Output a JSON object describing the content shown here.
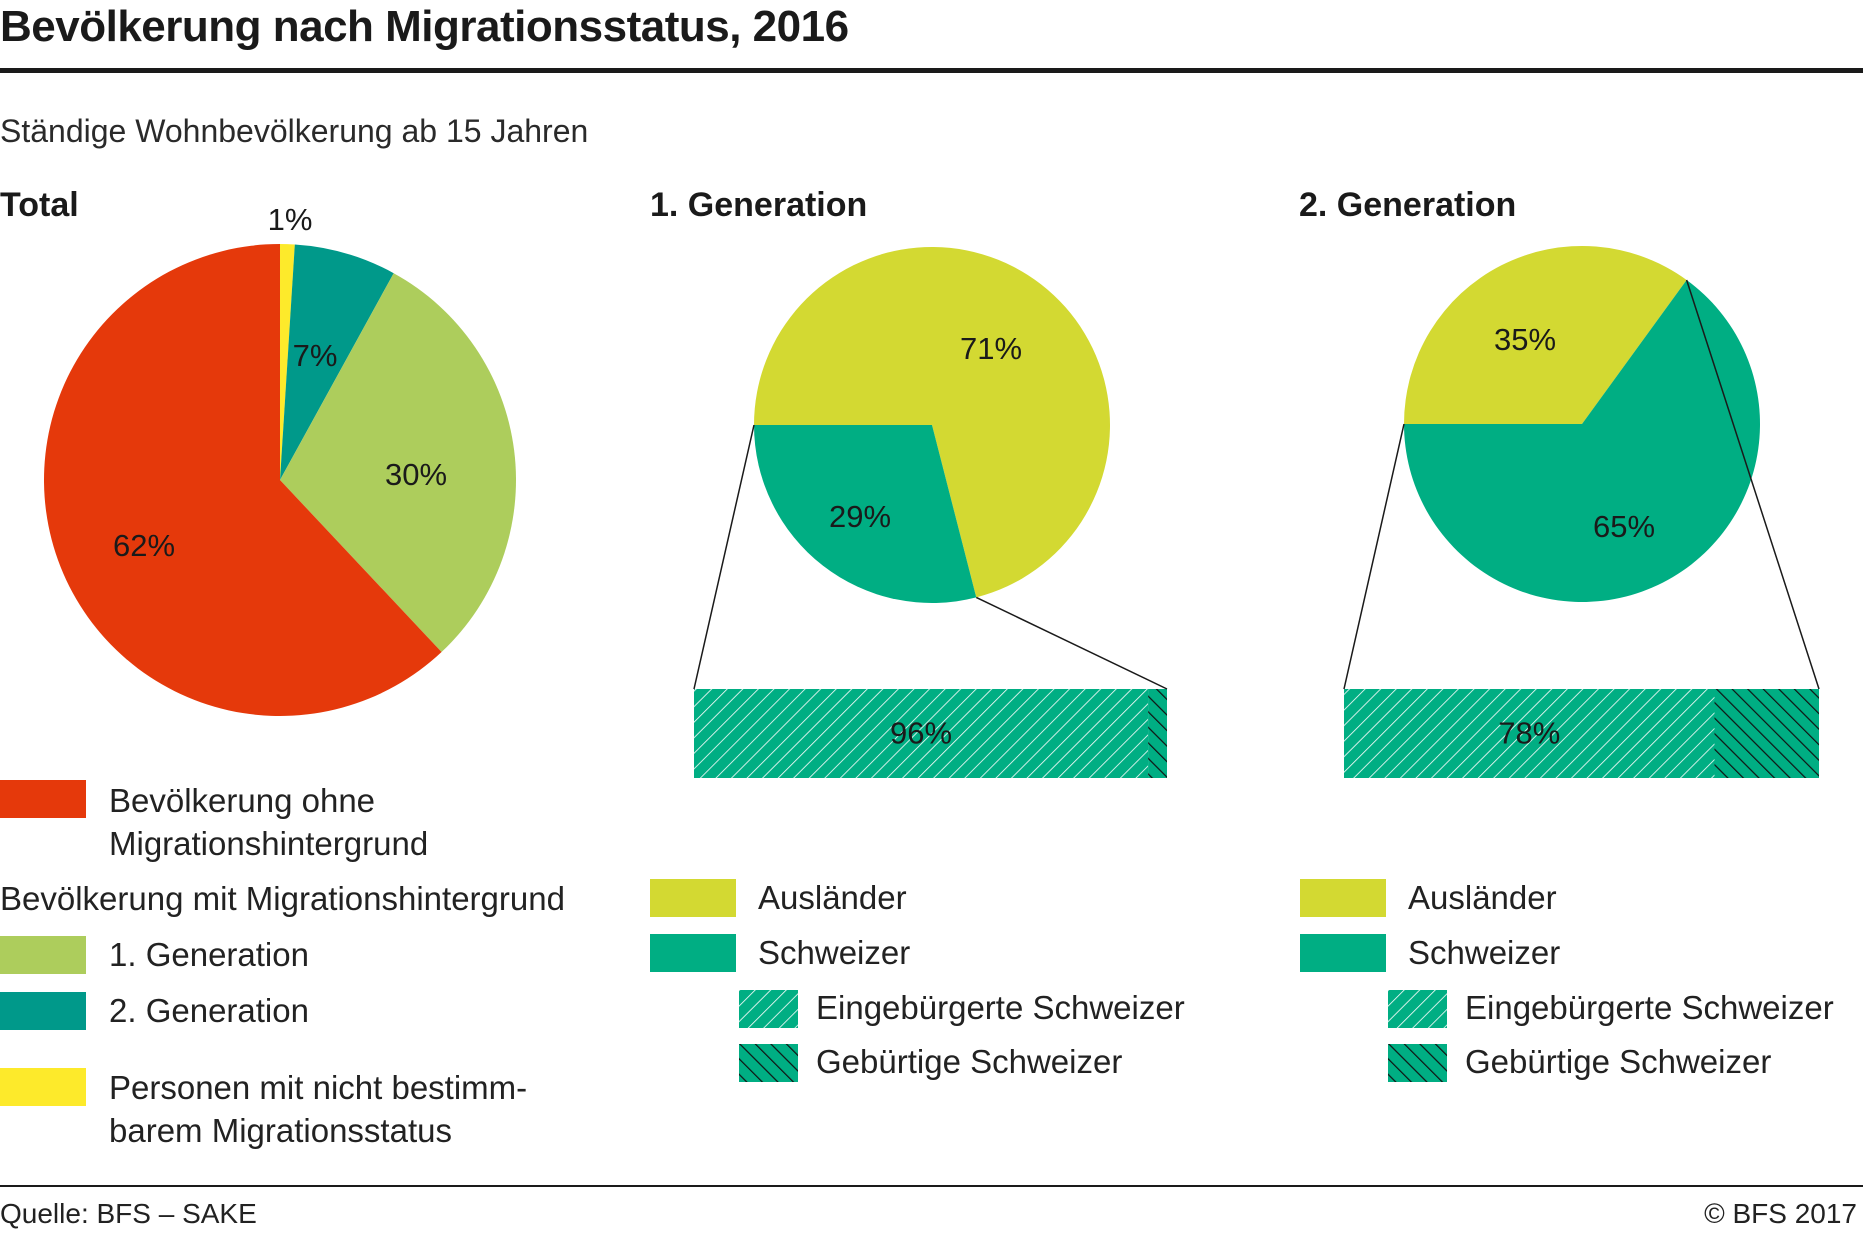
{
  "header": {
    "title": "Bevölkerung nach Migrationsstatus, 2016",
    "subtitle": "Ständige Wohnbevölkerung ab 15 Jahren"
  },
  "footer": {
    "source": "Quelle: BFS – SAKE",
    "copyright": "© BFS 2017"
  },
  "colors": {
    "ohne": "#e5390b",
    "gen1": "#adcd5c",
    "gen2": "#00998a",
    "unbestimmt": "#fdea2b",
    "auslaender": "#d3d932",
    "schweizer": "#00ae83",
    "hatch_white": "#ffffff",
    "hatch_black": "#111111"
  },
  "legend_total": {
    "ohne_line1": "Bevölkerung ohne",
    "ohne_line2": "Migrationshintergrund",
    "mit_heading": "Bevölkerung mit Migrationshintergrund",
    "gen1": "1. Generation",
    "gen2": "2. Generation",
    "unbestimmt_line1": "Personen mit nicht bestimm-",
    "unbestimmt_line2": "barem Migrationsstatus"
  },
  "legend_gen": {
    "auslaender": "Ausländer",
    "schweizer": "Schweizer",
    "eingebuergerte": "Eingebürgerte Schweizer",
    "gebuertige": "Gebürtige Schweizer"
  },
  "chart_data": [
    {
      "type": "pie",
      "title": "Total",
      "slices": [
        {
          "label": "Personen mit nicht bestimmbarem Migrationsstatus",
          "value": 1,
          "text": "1%"
        },
        {
          "label": "2. Generation",
          "value": 7,
          "text": "7%"
        },
        {
          "label": "1. Generation",
          "value": 30,
          "text": "30%"
        },
        {
          "label": "Bevölkerung ohne Migrationshintergrund",
          "value": 62,
          "text": "62%"
        }
      ]
    },
    {
      "type": "pie",
      "title": "1. Generation",
      "slices": [
        {
          "label": "Ausländer",
          "value": 71,
          "text": "71%"
        },
        {
          "label": "Schweizer",
          "value": 29,
          "text": "29%"
        }
      ],
      "breakdown": {
        "of": "Schweizer",
        "type": "bar",
        "segments": [
          {
            "label": "Eingebürgerte Schweizer",
            "value": 96,
            "text": "96%"
          },
          {
            "label": "Gebürtige Schweizer",
            "value": 4
          }
        ]
      }
    },
    {
      "type": "pie",
      "title": "2. Generation",
      "slices": [
        {
          "label": "Ausländer",
          "value": 35,
          "text": "35%"
        },
        {
          "label": "Schweizer",
          "value": 65,
          "text": "65%"
        }
      ],
      "breakdown": {
        "of": "Schweizer",
        "type": "bar",
        "segments": [
          {
            "label": "Eingebürgerte Schweizer",
            "value": 78,
            "text": "78%"
          },
          {
            "label": "Gebürtige Schweizer",
            "value": 22
          }
        ]
      }
    }
  ]
}
